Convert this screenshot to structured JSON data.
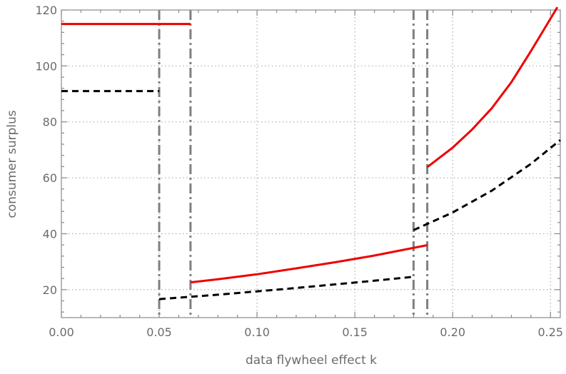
{
  "chart_data": {
    "type": "line",
    "xlabel": "data flywheel effect k",
    "ylabel": "consumer surplus",
    "xlim": [
      0,
      0.255
    ],
    "ylim": [
      10,
      120
    ],
    "xticks": [
      "0.00",
      "0.05",
      "0.10",
      "0.15",
      "0.20",
      "0.25"
    ],
    "yticks": [
      "20",
      "40",
      "60",
      "80",
      "100",
      "120"
    ],
    "xtick_values": [
      0,
      0.05,
      0.1,
      0.15,
      0.2,
      0.25
    ],
    "ytick_values": [
      20,
      40,
      60,
      80,
      100,
      120
    ],
    "grid": true,
    "thresholds": [
      0.05,
      0.066,
      0.18,
      0.187
    ],
    "series": [
      {
        "style": "solid",
        "color": "#ee0000",
        "segments": [
          [
            [
              0,
              115
            ],
            [
              0.066,
              115
            ]
          ],
          [
            [
              0.066,
              22.6
            ],
            [
              0.08,
              23.7
            ],
            [
              0.1,
              25.5
            ],
            [
              0.12,
              27.6
            ],
            [
              0.14,
              29.8
            ],
            [
              0.16,
              32.2
            ],
            [
              0.187,
              35.9
            ]
          ],
          [
            [
              0.187,
              63.8
            ],
            [
              0.2,
              70.8
            ],
            [
              0.21,
              77.3
            ],
            [
              0.22,
              84.9
            ],
            [
              0.23,
              94.2
            ],
            [
              0.24,
              105.3
            ],
            [
              0.2535,
              121
            ]
          ]
        ]
      },
      {
        "style": "dashed",
        "color": "#000000",
        "segments": [
          [
            [
              0,
              91
            ],
            [
              0.05,
              91
            ]
          ],
          [
            [
              0.05,
              16.6
            ],
            [
              0.08,
              18.2
            ],
            [
              0.1,
              19.4
            ],
            [
              0.12,
              20.6
            ],
            [
              0.14,
              21.9
            ],
            [
              0.16,
              23.2
            ],
            [
              0.18,
              24.6
            ]
          ],
          [
            [
              0.18,
              41.3
            ],
            [
              0.2,
              47.6
            ],
            [
              0.22,
              55.4
            ],
            [
              0.24,
              65.0
            ],
            [
              0.255,
              73.5
            ]
          ]
        ]
      }
    ]
  }
}
